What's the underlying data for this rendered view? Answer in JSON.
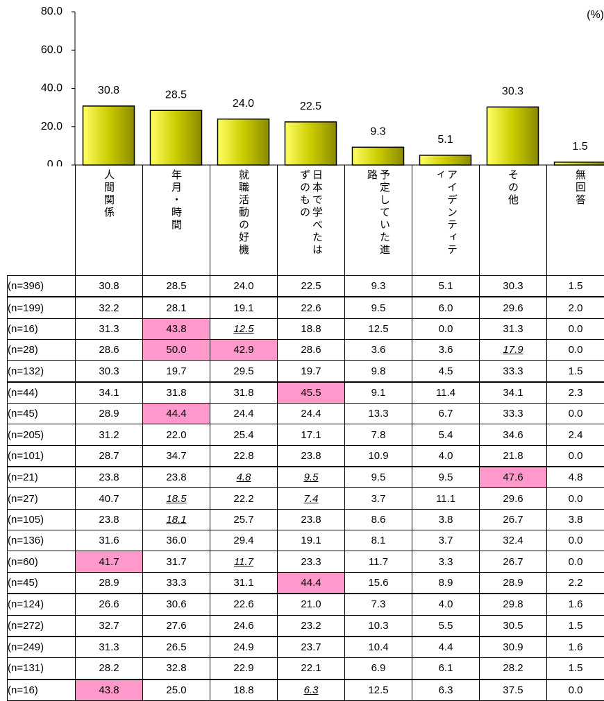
{
  "chart_data": {
    "type": "bar",
    "annotation": "(%)",
    "categories": [
      "人間関係",
      "年月・時間",
      "就職活動の好機",
      "日本で学べたはずのもの",
      "予定していた進路",
      "アイデンティティ",
      "その他",
      "無回答"
    ],
    "values": [
      30.8,
      28.5,
      24.0,
      22.5,
      9.3,
      5.1,
      30.3,
      1.5
    ],
    "value_labels": [
      "30.8",
      "28.5",
      "24.0",
      "22.5",
      "9.3",
      "5.1",
      "30.3",
      "1.5"
    ],
    "color": "#d4d400",
    "ylim": [
      0,
      80
    ],
    "yticks": [
      {
        "value": 0,
        "label": "0.0"
      },
      {
        "value": 20,
        "label": "20.0"
      },
      {
        "value": 40,
        "label": "40.0"
      },
      {
        "value": 60,
        "label": "60.0"
      },
      {
        "value": 80,
        "label": "80.0"
      }
    ]
  },
  "table": {
    "rows": [
      {
        "label": "(n=396)",
        "cells": [
          "30.8",
          "28.5",
          "24.0",
          "22.5",
          "9.3",
          "5.1",
          "30.3",
          "1.5"
        ]
      },
      {
        "label": "(n=199)",
        "cells": [
          "32.2",
          "28.1",
          "19.1",
          "22.6",
          "9.5",
          "6.0",
          "29.6",
          "2.0"
        ]
      },
      {
        "label": "(n=16)",
        "cells": [
          "31.3",
          "43.8",
          "12.5",
          "18.8",
          "12.5",
          "0.0",
          "31.3",
          "0.0"
        ]
      },
      {
        "label": "(n=28)",
        "cells": [
          "28.6",
          "50.0",
          "42.9",
          "28.6",
          "3.6",
          "3.6",
          "17.9",
          "0.0"
        ]
      },
      {
        "label": "(n=132)",
        "cells": [
          "30.3",
          "19.7",
          "29.5",
          "19.7",
          "9.8",
          "4.5",
          "33.3",
          "1.5"
        ]
      },
      {
        "label": "(n=44)",
        "cells": [
          "34.1",
          "31.8",
          "31.8",
          "45.5",
          "9.1",
          "11.4",
          "34.1",
          "2.3"
        ]
      },
      {
        "label": "(n=45)",
        "cells": [
          "28.9",
          "44.4",
          "24.4",
          "24.4",
          "13.3",
          "6.7",
          "33.3",
          "0.0"
        ]
      },
      {
        "label": "(n=205)",
        "cells": [
          "31.2",
          "22.0",
          "25.4",
          "17.1",
          "7.8",
          "5.4",
          "34.6",
          "2.4"
        ]
      },
      {
        "label": "(n=101)",
        "cells": [
          "28.7",
          "34.7",
          "22.8",
          "23.8",
          "10.9",
          "4.0",
          "21.8",
          "0.0"
        ]
      },
      {
        "label": "(n=21)",
        "cells": [
          "23.8",
          "23.8",
          "4.8",
          "9.5",
          "9.5",
          "9.5",
          "47.6",
          "4.8"
        ]
      },
      {
        "label": "(n=27)",
        "cells": [
          "40.7",
          "18.5",
          "22.2",
          "7.4",
          "3.7",
          "11.1",
          "29.6",
          "0.0"
        ]
      },
      {
        "label": "(n=105)",
        "cells": [
          "23.8",
          "18.1",
          "25.7",
          "23.8",
          "8.6",
          "3.8",
          "26.7",
          "3.8"
        ]
      },
      {
        "label": "(n=136)",
        "cells": [
          "31.6",
          "36.0",
          "29.4",
          "19.1",
          "8.1",
          "3.7",
          "32.4",
          "0.0"
        ]
      },
      {
        "label": "(n=60)",
        "cells": [
          "41.7",
          "31.7",
          "11.7",
          "23.3",
          "11.7",
          "3.3",
          "26.7",
          "0.0"
        ]
      },
      {
        "label": "(n=45)",
        "cells": [
          "28.9",
          "33.3",
          "31.1",
          "44.4",
          "15.6",
          "8.9",
          "28.9",
          "2.2"
        ]
      },
      {
        "label": "(n=124)",
        "cells": [
          "26.6",
          "30.6",
          "22.6",
          "21.0",
          "7.3",
          "4.0",
          "29.8",
          "1.6"
        ]
      },
      {
        "label": "(n=272)",
        "cells": [
          "32.7",
          "27.6",
          "24.6",
          "23.2",
          "10.3",
          "5.5",
          "30.5",
          "1.5"
        ]
      },
      {
        "label": "(n=249)",
        "cells": [
          "31.3",
          "26.5",
          "24.9",
          "23.7",
          "10.4",
          "4.4",
          "30.9",
          "1.6"
        ]
      },
      {
        "label": "(n=131)",
        "cells": [
          "28.2",
          "32.8",
          "22.9",
          "22.1",
          "6.9",
          "6.1",
          "28.2",
          "1.5"
        ]
      },
      {
        "label": "(n=16)",
        "cells": [
          "43.8",
          "25.0",
          "18.8",
          "6.3",
          "12.5",
          "6.3",
          "37.5",
          "0.0"
        ]
      }
    ],
    "highlight_color": "#ff99cc",
    "highlight": [
      [
        2,
        1
      ],
      [
        3,
        1
      ],
      [
        3,
        2
      ],
      [
        5,
        3
      ],
      [
        6,
        1
      ],
      [
        9,
        6
      ],
      [
        13,
        0
      ],
      [
        14,
        3
      ],
      [
        19,
        0
      ]
    ],
    "underline": [
      [
        2,
        2
      ],
      [
        3,
        6
      ],
      [
        9,
        2
      ],
      [
        9,
        3
      ],
      [
        10,
        1
      ],
      [
        10,
        3
      ],
      [
        11,
        1
      ],
      [
        13,
        2
      ],
      [
        19,
        3
      ]
    ]
  }
}
